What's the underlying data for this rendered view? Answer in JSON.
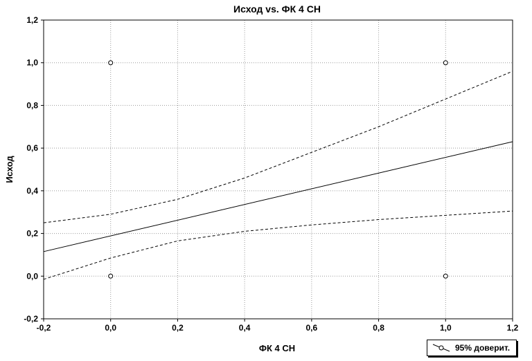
{
  "chart_data": {
    "type": "scatter",
    "title": "Исход vs. ФК 4 СН",
    "xlabel": "ФК 4 СН",
    "ylabel": "Исход",
    "xlim": [
      -0.2,
      1.2
    ],
    "ylim": [
      -0.2,
      1.2
    ],
    "x_ticks": [
      "-0,2",
      "0,0",
      "0,2",
      "0,4",
      "0,6",
      "0,8",
      "1,0",
      "1,2"
    ],
    "y_ticks": [
      "-0,2",
      "0,0",
      "0,2",
      "0,4",
      "0,6",
      "0,8",
      "1,0",
      "1,2"
    ],
    "x_tick_values": [
      -0.2,
      0.0,
      0.2,
      0.4,
      0.6,
      0.8,
      1.0,
      1.2
    ],
    "y_tick_values": [
      -0.2,
      0.0,
      0.2,
      0.4,
      0.6,
      0.8,
      1.0,
      1.2
    ],
    "grid": true,
    "points": [
      {
        "x": 0.0,
        "y": 1.0
      },
      {
        "x": 0.0,
        "y": 0.0
      },
      {
        "x": 1.0,
        "y": 1.0
      },
      {
        "x": 1.0,
        "y": 0.0
      }
    ],
    "fit_line": {
      "x": [
        -0.2,
        1.2
      ],
      "y": [
        0.115,
        0.63
      ]
    },
    "ci_upper": {
      "x": [
        -0.2,
        0.0,
        0.2,
        0.4,
        0.6,
        0.8,
        1.0,
        1.2
      ],
      "y": [
        0.25,
        0.29,
        0.36,
        0.46,
        0.58,
        0.7,
        0.83,
        0.96
      ]
    },
    "ci_lower": {
      "x": [
        -0.2,
        0.0,
        0.2,
        0.4,
        0.6,
        0.8,
        1.0,
        1.2
      ],
      "y": [
        -0.015,
        0.085,
        0.165,
        0.21,
        0.24,
        0.265,
        0.285,
        0.305
      ]
    },
    "legend": {
      "label": "95% доверит.",
      "position": "bottom-right"
    }
  }
}
